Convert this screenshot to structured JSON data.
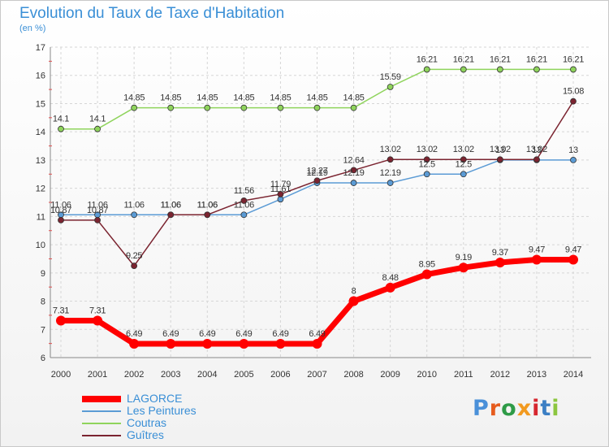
{
  "title": "Evolution du Taux de Taxe d'Habitation",
  "subtitle": "(en %)",
  "logo": {
    "text": "Proxiti",
    "letter_colors": [
      "#4a90d9",
      "#e65c1e",
      "#2e9b47",
      "#f29a1f",
      "#d6262f",
      "#3c7fc4",
      "#8cc63f"
    ]
  },
  "chart_data": {
    "type": "line",
    "x": [
      "2000",
      "2001",
      "2002",
      "2003",
      "2004",
      "2005",
      "2006",
      "2007",
      "2008",
      "2009",
      "2010",
      "2011",
      "2012",
      "2013",
      "2014"
    ],
    "ylim": [
      6,
      17
    ],
    "yticks": [
      "6",
      "7",
      "8",
      "9",
      "10",
      "11",
      "12",
      "13",
      "14",
      "15",
      "16",
      "17"
    ],
    "grid": true,
    "legend_position": "bottom-left",
    "series": [
      {
        "name": "LAGORCE",
        "color": "#ff0000",
        "values": [
          7.31,
          7.31,
          6.49,
          6.49,
          6.49,
          6.49,
          6.49,
          6.49,
          8,
          8.48,
          8.95,
          9.19,
          9.37,
          9.47,
          9.47
        ],
        "labels": [
          "7.31",
          "7.31",
          "6.49",
          "6.49",
          "6.49",
          "6.49",
          "6.49",
          "6.49",
          "8",
          "8.48",
          "8.95",
          "9.19",
          "9.37",
          "9.47",
          "9.47"
        ]
      },
      {
        "name": "Les Peintures",
        "color": "#5b9bd5",
        "values": [
          11.06,
          11.06,
          11.06,
          11.06,
          11.06,
          11.06,
          11.61,
          12.19,
          12.19,
          12.19,
          12.5,
          12.5,
          13,
          13,
          13
        ],
        "labels": [
          "11.06",
          "11.06",
          "11.06",
          "11.06",
          "11.06",
          "11.06",
          "11.61",
          "12.19",
          "12.19",
          "12.19",
          "12.5",
          "12.5",
          "13",
          "13",
          "13"
        ]
      },
      {
        "name": "Coutras",
        "color": "#8fd45c",
        "values": [
          14.1,
          14.1,
          14.85,
          14.85,
          14.85,
          14.85,
          14.85,
          14.85,
          14.85,
          15.59,
          16.21,
          16.21,
          16.21,
          16.21,
          16.21
        ],
        "labels": [
          "14.1",
          "14.1",
          "14.85",
          "14.85",
          "14.85",
          "14.85",
          "14.85",
          "14.85",
          "14.85",
          "15.59",
          "16.21",
          "16.21",
          "16.21",
          "16.21",
          "16.21"
        ]
      },
      {
        "name": "Guîtres",
        "color": "#7b2430",
        "values": [
          10.87,
          10.87,
          9.25,
          11.06,
          11.06,
          11.56,
          11.79,
          12.27,
          12.64,
          13.02,
          13.02,
          13.02,
          13.02,
          13.02,
          15.08
        ],
        "labels": [
          "10.87",
          "10.87",
          "9.25",
          "11.06",
          "11.06",
          "11.56",
          "11.79",
          "12.27",
          "12.64",
          "13.02",
          "13.02",
          "13.02",
          "13.02",
          "13.02",
          "15.08"
        ]
      }
    ]
  }
}
